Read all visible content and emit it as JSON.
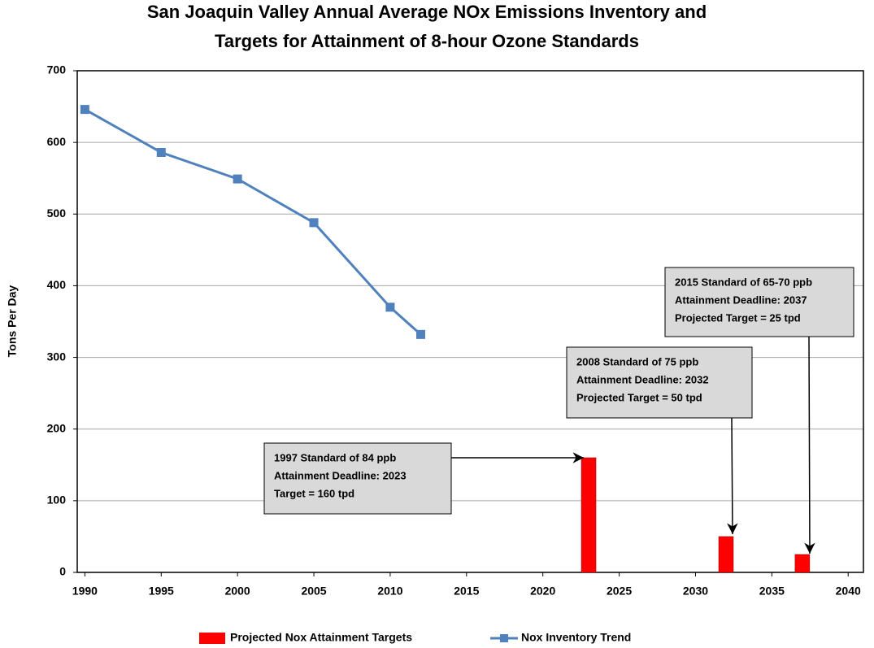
{
  "chart_data": {
    "type": "combo",
    "title": [
      "San Joaquin Valley Annual Average NOx Emissions Inventory and",
      "Targets for Attainment of 8-hour Ozone Standards"
    ],
    "ylabel": "Tons Per Day",
    "xlim": [
      1989.5,
      2041
    ],
    "xticks": [
      1990,
      1995,
      2000,
      2005,
      2010,
      2015,
      2020,
      2025,
      2030,
      2035,
      2040
    ],
    "ylim": [
      0,
      700
    ],
    "yticks": [
      0,
      100,
      200,
      300,
      400,
      500,
      600,
      700
    ],
    "grid": true,
    "legend": "bottom",
    "series": [
      {
        "name": "Projected Nox Attainment Targets",
        "type": "bar",
        "color": "#ff0000",
        "x": [
          2023,
          2032,
          2037
        ],
        "values": [
          160,
          50,
          25
        ]
      },
      {
        "name": "Nox Inventory Trend",
        "type": "line",
        "color": "#4f81bd",
        "x": [
          1990,
          1995,
          2000,
          2005,
          2010,
          2012
        ],
        "values": [
          646,
          586,
          549,
          488,
          370,
          332
        ]
      }
    ],
    "annotations": [
      {
        "lines": [
          "1997 Standard of 84 ppb",
          "Attainment Deadline: 2023",
          "Target = 160 tpd"
        ]
      },
      {
        "lines": [
          "2008 Standard of 75 ppb",
          "Attainment Deadline: 2032",
          "Projected Target = 50 tpd"
        ]
      },
      {
        "lines": [
          "2015 Standard of 65-70 ppb",
          "Attainment Deadline: 2037",
          "Projected Target = 25 tpd"
        ]
      }
    ]
  }
}
